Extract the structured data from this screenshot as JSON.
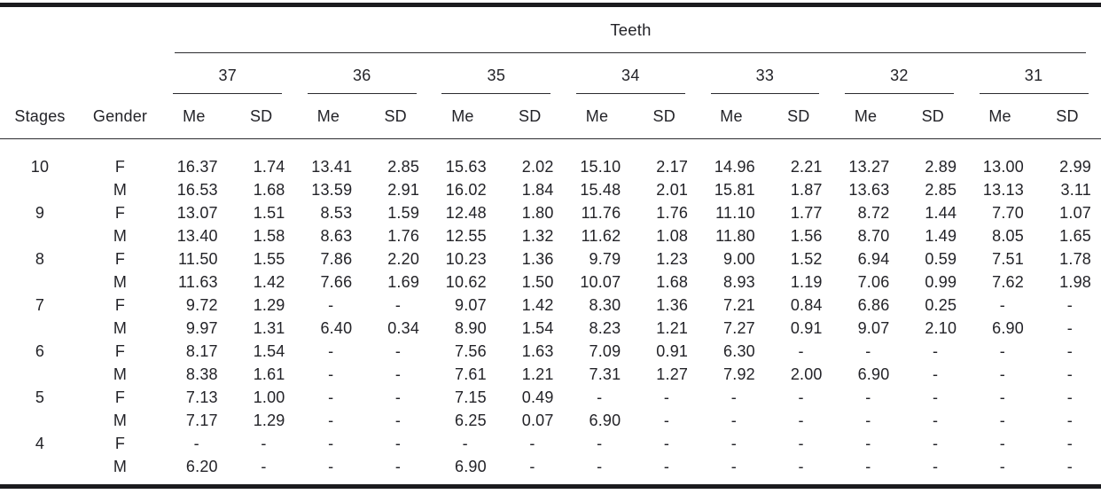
{
  "table": {
    "title": "Teeth",
    "col_headers": {
      "stages": "Stages",
      "gender": "Gender",
      "me": "Me",
      "sd": "SD"
    },
    "teeth": [
      "37",
      "36",
      "35",
      "34",
      "33",
      "32",
      "31"
    ],
    "rows": [
      {
        "stage": "10",
        "gender": "F",
        "values": [
          "16.37",
          "1.74",
          "13.41",
          "2.85",
          "15.63",
          "2.02",
          "15.10",
          "2.17",
          "14.96",
          "2.21",
          "13.27",
          "2.89",
          "13.00",
          "2.99"
        ]
      },
      {
        "stage": "",
        "gender": "M",
        "values": [
          "16.53",
          "1.68",
          "13.59",
          "2.91",
          "16.02",
          "1.84",
          "15.48",
          "2.01",
          "15.81",
          "1.87",
          "13.63",
          "2.85",
          "13.13",
          "3.11"
        ]
      },
      {
        "stage": "9",
        "gender": "F",
        "values": [
          "13.07",
          "1.51",
          "8.53",
          "1.59",
          "12.48",
          "1.80",
          "11.76",
          "1.76",
          "11.10",
          "1.77",
          "8.72",
          "1.44",
          "7.70",
          "1.07"
        ]
      },
      {
        "stage": "",
        "gender": "M",
        "values": [
          "13.40",
          "1.58",
          "8.63",
          "1.76",
          "12.55",
          "1.32",
          "11.62",
          "1.08",
          "11.80",
          "1.56",
          "8.70",
          "1.49",
          "8.05",
          "1.65"
        ]
      },
      {
        "stage": "8",
        "gender": "F",
        "values": [
          "11.50",
          "1.55",
          "7.86",
          "2.20",
          "10.23",
          "1.36",
          "9.79",
          "1.23",
          "9.00",
          "1.52",
          "6.94",
          "0.59",
          "7.51",
          "1.78"
        ]
      },
      {
        "stage": "",
        "gender": "M",
        "values": [
          "11.63",
          "1.42",
          "7.66",
          "1.69",
          "10.62",
          "1.50",
          "10.07",
          "1.68",
          "8.93",
          "1.19",
          "7.06",
          "0.99",
          "7.62",
          "1.98"
        ]
      },
      {
        "stage": "7",
        "gender": "F",
        "values": [
          "9.72",
          "1.29",
          "-",
          "-",
          "9.07",
          "1.42",
          "8.30",
          "1.36",
          "7.21",
          "0.84",
          "6.86",
          "0.25",
          "-",
          "-"
        ]
      },
      {
        "stage": "",
        "gender": "M",
        "values": [
          "9.97",
          "1.31",
          "6.40",
          "0.34",
          "8.90",
          "1.54",
          "8.23",
          "1.21",
          "7.27",
          "0.91",
          "9.07",
          "2.10",
          "6.90",
          "-"
        ]
      },
      {
        "stage": "6",
        "gender": "F",
        "values": [
          "8.17",
          "1.54",
          "-",
          "-",
          "7.56",
          "1.63",
          "7.09",
          "0.91",
          "6.30",
          "-",
          "-",
          "-",
          "-",
          "-"
        ]
      },
      {
        "stage": "",
        "gender": "M",
        "values": [
          "8.38",
          "1.61",
          "-",
          "-",
          "7.61",
          "1.21",
          "7.31",
          "1.27",
          "7.92",
          "2.00",
          "6.90",
          "-",
          "-",
          "-"
        ]
      },
      {
        "stage": "5",
        "gender": "F",
        "values": [
          "7.13",
          "1.00",
          "-",
          "-",
          "7.15",
          "0.49",
          "-",
          "-",
          "-",
          "-",
          "-",
          "-",
          "-",
          "-"
        ]
      },
      {
        "stage": "",
        "gender": "M",
        "values": [
          "7.17",
          "1.29",
          "-",
          "-",
          "6.25",
          "0.07",
          "6.90",
          "-",
          "-",
          "-",
          "-",
          "-",
          "-",
          "-"
        ]
      },
      {
        "stage": "4",
        "gender": "F",
        "values": [
          "-",
          "-",
          "-",
          "-",
          "-",
          "-",
          "-",
          "-",
          "-",
          "-",
          "-",
          "-",
          "-",
          "-"
        ]
      },
      {
        "stage": "",
        "gender": "M",
        "values": [
          "6.20",
          "-",
          "-",
          "-",
          "6.90",
          "-",
          "-",
          "-",
          "-",
          "-",
          "-",
          "-",
          "-",
          "-"
        ]
      }
    ],
    "colors": {
      "text": "#232328",
      "rule": "#1b1b1e",
      "background": "#ffffff"
    }
  }
}
